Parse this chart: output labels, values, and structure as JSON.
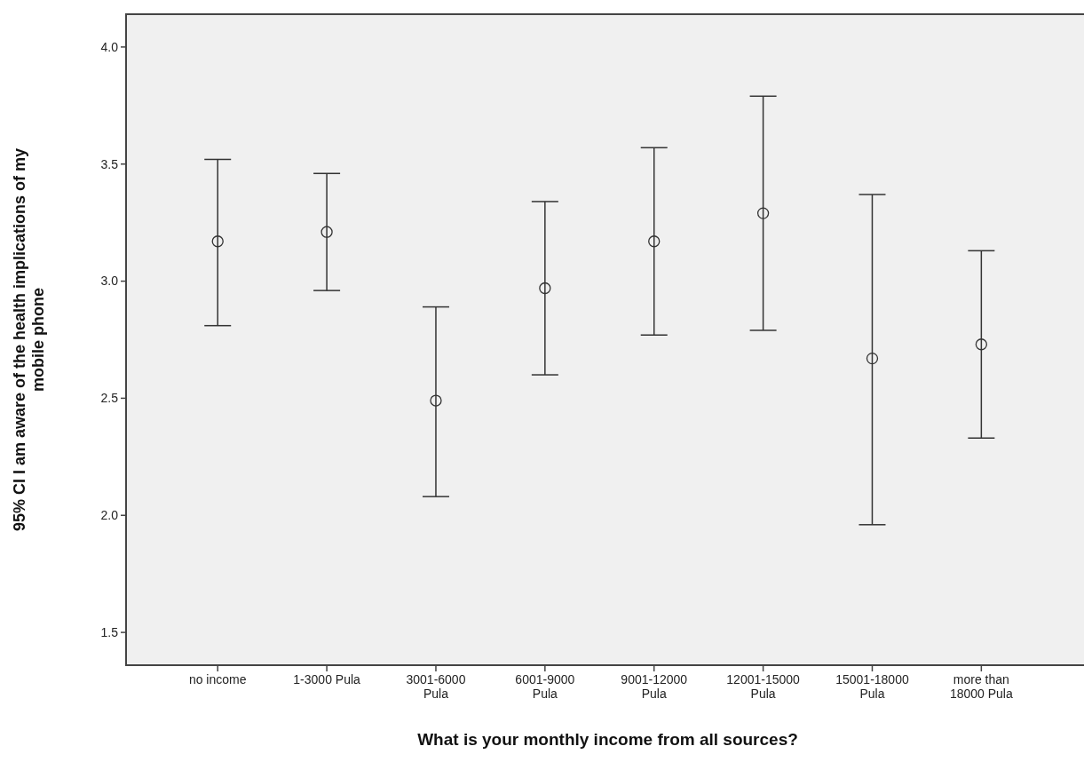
{
  "chart_data": {
    "type": "scatter",
    "xlabel": "What is your monthly income from all sources?",
    "ylabel": "95% CI I am aware of the health implications of my mobile phone",
    "categories": [
      "no income",
      "1-3000 Pula",
      "3001-6000 Pula",
      "6001-9000 Pula",
      "9001-12000 Pula",
      "12001-15000 Pula",
      "15001-18000 Pula",
      "more than 18000 Pula"
    ],
    "series": [
      {
        "color": "#333333",
        "values": [
          3.17,
          3.21,
          2.49,
          2.97,
          3.17,
          3.29,
          2.67,
          2.73
        ],
        "errors": [
          [
            2.81,
            3.52
          ],
          [
            2.96,
            3.46
          ],
          [
            2.08,
            2.89
          ],
          [
            2.6,
            3.34
          ],
          [
            2.77,
            3.57
          ],
          [
            2.79,
            3.79
          ],
          [
            1.96,
            3.37
          ],
          [
            2.33,
            3.13
          ]
        ]
      }
    ],
    "ylim": [
      1.36,
      4.14
    ],
    "yticks": [
      {
        "value": 1.5,
        "label": "1.5"
      },
      {
        "value": 2,
        "label": "2.0"
      },
      {
        "value": 2.5,
        "label": "2.5"
      },
      {
        "value": 3,
        "label": "3.0"
      },
      {
        "value": 3.5,
        "label": "3.5"
      },
      {
        "value": 4,
        "label": "4.0"
      }
    ],
    "grid": false,
    "marker": "circle"
  }
}
